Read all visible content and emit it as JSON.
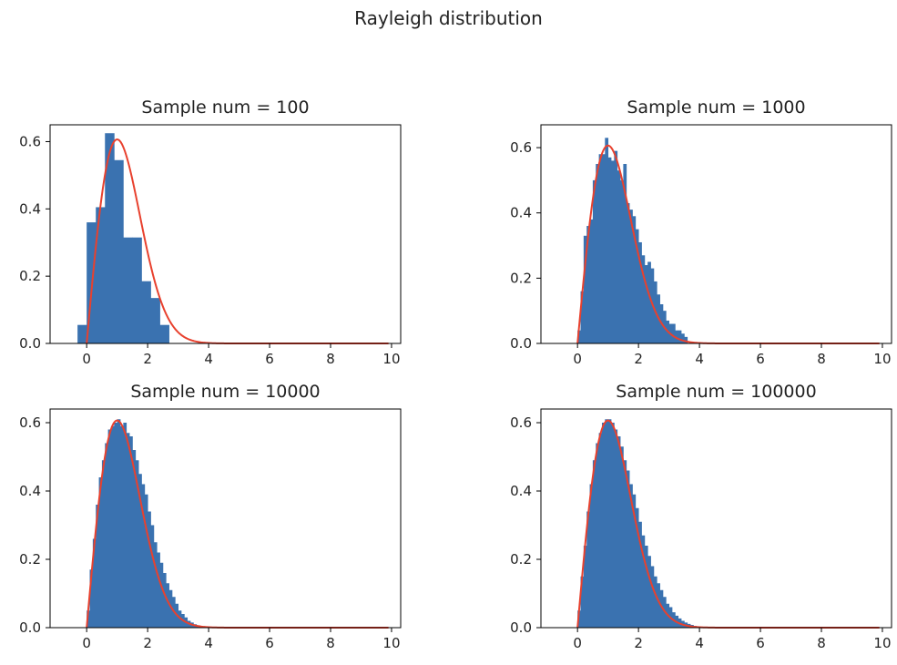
{
  "figure": {
    "title": "Rayleigh distribution"
  },
  "colors": {
    "hist": "#3a72b0",
    "curve": "#e8412e",
    "axis": "#000000",
    "text": "#222222"
  },
  "chart_data": [
    {
      "type": "bar",
      "title": "Sample num = 100",
      "xlim": [
        -1.2,
        10.3
      ],
      "ylim": [
        0,
        0.65
      ],
      "xticks": [
        0,
        2,
        4,
        6,
        8,
        10
      ],
      "yticks": [
        0.0,
        0.2,
        0.4,
        0.6
      ],
      "ytick_labels": [
        "0.0",
        "0.2",
        "0.4",
        "0.6"
      ],
      "bins": {
        "start": -0.3,
        "width": 0.3
      },
      "values": [
        0.055,
        0.36,
        0.405,
        0.625,
        0.545,
        0.315,
        0.315,
        0.185,
        0.135,
        0.055
      ],
      "curve": "rayleigh_pdf_sigma_1",
      "curve_range": [
        0,
        9.9
      ]
    },
    {
      "type": "bar",
      "title": "Sample num = 1000",
      "xlim": [
        -1.2,
        10.3
      ],
      "ylim": [
        0,
        0.67
      ],
      "xticks": [
        0,
        2,
        4,
        6,
        8,
        10
      ],
      "yticks": [
        0.0,
        0.2,
        0.4,
        0.6
      ],
      "ytick_labels": [
        "0.0",
        "0.2",
        "0.4",
        "0.6"
      ],
      "bins": {
        "start": 0.0,
        "width": 0.1
      },
      "values": [
        0.04,
        0.16,
        0.33,
        0.36,
        0.38,
        0.5,
        0.55,
        0.58,
        0.58,
        0.63,
        0.57,
        0.56,
        0.59,
        0.53,
        0.5,
        0.55,
        0.43,
        0.41,
        0.39,
        0.35,
        0.31,
        0.27,
        0.24,
        0.25,
        0.23,
        0.19,
        0.15,
        0.12,
        0.1,
        0.07,
        0.06,
        0.06,
        0.04,
        0.04,
        0.03,
        0.02
      ],
      "curve": "rayleigh_pdf_sigma_1",
      "curve_range": [
        0,
        9.9
      ]
    },
    {
      "type": "bar",
      "title": "Sample num = 10000",
      "xlim": [
        -1.2,
        10.3
      ],
      "ylim": [
        0,
        0.64
      ],
      "xticks": [
        0,
        2,
        4,
        6,
        8,
        10
      ],
      "yticks": [
        0.0,
        0.2,
        0.4,
        0.6
      ],
      "ytick_labels": [
        "0.0",
        "0.2",
        "0.4",
        "0.6"
      ],
      "bins": {
        "start": 0.0,
        "width": 0.1
      },
      "values": [
        0.05,
        0.17,
        0.26,
        0.36,
        0.44,
        0.49,
        0.54,
        0.58,
        0.59,
        0.6,
        0.61,
        0.59,
        0.6,
        0.57,
        0.56,
        0.52,
        0.49,
        0.45,
        0.42,
        0.39,
        0.34,
        0.3,
        0.25,
        0.22,
        0.19,
        0.16,
        0.13,
        0.11,
        0.09,
        0.07,
        0.05,
        0.04,
        0.03,
        0.02,
        0.015,
        0.01,
        0.007,
        0.004
      ],
      "curve": "rayleigh_pdf_sigma_1",
      "curve_range": [
        0,
        9.9
      ]
    },
    {
      "type": "bar",
      "title": "Sample num = 100000",
      "xlim": [
        -1.2,
        10.3
      ],
      "ylim": [
        0,
        0.64
      ],
      "xticks": [
        0,
        2,
        4,
        6,
        8,
        10
      ],
      "yticks": [
        0.0,
        0.2,
        0.4,
        0.6
      ],
      "ytick_labels": [
        "0.0",
        "0.2",
        "0.4",
        "0.6"
      ],
      "bins": {
        "start": 0.0,
        "width": 0.1
      },
      "values": [
        0.05,
        0.15,
        0.24,
        0.34,
        0.42,
        0.49,
        0.54,
        0.57,
        0.6,
        0.61,
        0.61,
        0.6,
        0.58,
        0.56,
        0.53,
        0.49,
        0.46,
        0.42,
        0.39,
        0.35,
        0.31,
        0.27,
        0.24,
        0.21,
        0.18,
        0.15,
        0.13,
        0.11,
        0.09,
        0.07,
        0.06,
        0.045,
        0.035,
        0.027,
        0.02,
        0.015,
        0.011,
        0.008,
        0.005,
        0.003
      ],
      "curve": "rayleigh_pdf_sigma_1",
      "curve_range": [
        0,
        9.9
      ]
    }
  ]
}
